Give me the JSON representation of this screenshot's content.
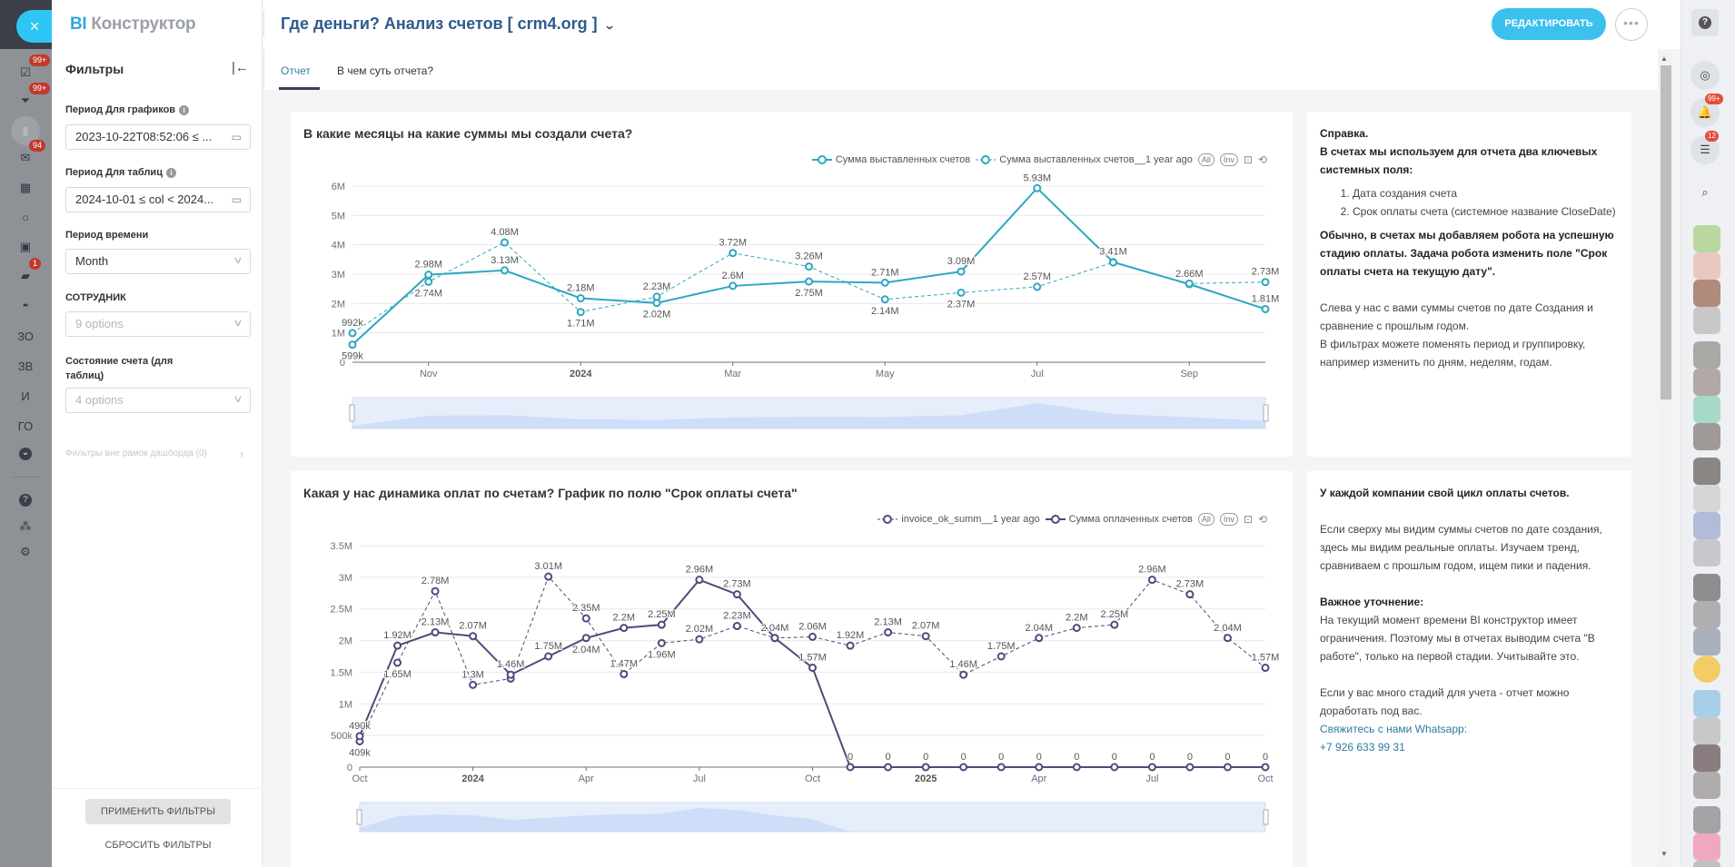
{
  "app": {
    "brand_prefix": "BI",
    "brand_name": "Конструктор",
    "title": "Где деньги? Анализ счетов [ crm4.org ]",
    "edit_label": "РЕДАКТИРОВАТЬ",
    "more_label": "•••",
    "close_icon": "×"
  },
  "left_rail": {
    "items": [
      {
        "icon": "tasks-icon",
        "glyph": "☑",
        "badge": "99+"
      },
      {
        "icon": "funnel-icon",
        "glyph": "⏷",
        "badge": "99+"
      },
      {
        "icon": "bi-chart-icon",
        "glyph": "▮",
        "badge": ""
      },
      {
        "icon": "mail-icon",
        "glyph": "✉",
        "badge": "94"
      },
      {
        "icon": "calendar-icon",
        "glyph": "▦",
        "badge": ""
      },
      {
        "icon": "circle-icon",
        "glyph": "○",
        "badge": ""
      },
      {
        "icon": "contact-card-icon",
        "glyph": "▣",
        "badge": ""
      },
      {
        "icon": "chat-icon",
        "glyph": "▰",
        "badge": "1"
      },
      {
        "icon": "robot-icon",
        "glyph": "◓",
        "badge": ""
      },
      {
        "icon": "text-item",
        "glyph": "ЗО",
        "badge": ""
      },
      {
        "icon": "text-item",
        "glyph": "ЗВ",
        "badge": ""
      },
      {
        "icon": "text-item",
        "glyph": "И",
        "badge": ""
      },
      {
        "icon": "text-item",
        "glyph": "ГО",
        "badge": ""
      },
      {
        "icon": "chevron-down-circle-icon",
        "glyph": "⌄",
        "badge": ""
      }
    ],
    "bottom": [
      {
        "icon": "help-icon",
        "glyph": "?"
      },
      {
        "icon": "sitemap-icon",
        "glyph": "⁂"
      },
      {
        "icon": "settings-icon",
        "glyph": "⚙"
      }
    ]
  },
  "filters": {
    "title": "Фильтры",
    "collapse_icon": "|←",
    "period_charts": {
      "label": "Период Для графиков",
      "value": "2023-10-22T08:52:06 ≤ ..."
    },
    "period_tables": {
      "label": "Период Для таблиц",
      "value": "2024-10-01 ≤ col < 2024..."
    },
    "time_grain": {
      "label": "Период времени",
      "value": "Month"
    },
    "employee": {
      "label": "СОТРУДНИК",
      "placeholder": "9 options"
    },
    "invoice_state": {
      "label": "Состояние счета (для таблиц)",
      "placeholder": "4 options"
    },
    "outside": "Фильтры вне рамок дашборда (0)",
    "apply": "ПРИМЕНИТЬ ФИЛЬТРЫ",
    "reset": "СБРОСИТЬ ФИЛЬТРЫ"
  },
  "tabs": [
    {
      "label": "Отчет",
      "active": true
    },
    {
      "label": "В чем суть отчета?",
      "active": false
    }
  ],
  "legend_controls": {
    "all": "All",
    "inv": "Inv"
  },
  "chart_data": [
    {
      "type": "line",
      "title": "В какие месяцы на какие суммы мы создали счета?",
      "color": "#2ea7c0",
      "x": [
        "2023-10",
        "2023-11",
        "2023-12",
        "2024-01",
        "2024-02",
        "2024-03",
        "2024-04",
        "2024-05",
        "2024-06",
        "2024-07",
        "2024-08",
        "2024-09",
        "2024-10"
      ],
      "x_ticks": [
        {
          "i": 1,
          "label": "Nov"
        },
        {
          "i": 3,
          "label": "2024",
          "bold": true
        },
        {
          "i": 5,
          "label": "Mar"
        },
        {
          "i": 7,
          "label": "May"
        },
        {
          "i": 9,
          "label": "Jul"
        },
        {
          "i": 11,
          "label": "Sep"
        }
      ],
      "y_ticks": [
        {
          "v": 0,
          "label": "0"
        },
        {
          "v": 1000000,
          "label": "1M"
        },
        {
          "v": 2000000,
          "label": "2M"
        },
        {
          "v": 3000000,
          "label": "3M"
        },
        {
          "v": 4000000,
          "label": "4M"
        },
        {
          "v": 5000000,
          "label": "5M"
        },
        {
          "v": 6000000,
          "label": "6M"
        }
      ],
      "ylim": [
        0,
        6000000
      ],
      "grid": true,
      "legend_position": "top-right",
      "series": [
        {
          "name": "Сумма выставленных счетов",
          "dashed": false,
          "values": [
            599000,
            2980000,
            3130000,
            2180000,
            2020000,
            2600000,
            2750000,
            2710000,
            3090000,
            5930000,
            3410000,
            2660000,
            1810000
          ],
          "labels": [
            "599k",
            "2.98M",
            "3.13M",
            "2.18M",
            "2.02M",
            "2.6M",
            "2.75M",
            "2.71M",
            "3.09M",
            "5.93M",
            "3.41M",
            "2.66M",
            "1.81M"
          ]
        },
        {
          "name": "Сумма выставленных счетов__1 year ago",
          "dashed": true,
          "values": [
            992000,
            2740000,
            4080000,
            1710000,
            2230000,
            3720000,
            3260000,
            2140000,
            2370000,
            2570000,
            3400000,
            2680000,
            2730000
          ],
          "labels": [
            "992k",
            "2.74M",
            "4.08M",
            "1.71M",
            "2.23M",
            "3.72M",
            "3.26M",
            "2.14M",
            "2.37M",
            "2.57M",
            "",
            "",
            "2.73M"
          ]
        }
      ]
    },
    {
      "type": "line",
      "title": "Какая у нас динамика оплат по счетам? График по полю \"Срок оплаты счета\"",
      "color": "#4a4c7a",
      "x": [
        "2023-10",
        "2023-11",
        "2023-12",
        "2024-01",
        "2024-02",
        "2024-03",
        "2024-04",
        "2024-05",
        "2024-06",
        "2024-07",
        "2024-08",
        "2024-09",
        "2024-10",
        "2024-11",
        "2024-12",
        "2025-01",
        "2025-02",
        "2025-03",
        "2025-04",
        "2025-05",
        "2025-06",
        "2025-07",
        "2025-08",
        "2025-09",
        "2025-10"
      ],
      "x_ticks": [
        {
          "i": 0,
          "label": "Oct"
        },
        {
          "i": 3,
          "label": "2024",
          "bold": true
        },
        {
          "i": 6,
          "label": "Apr"
        },
        {
          "i": 9,
          "label": "Jul"
        },
        {
          "i": 12,
          "label": "Oct"
        },
        {
          "i": 15,
          "label": "2025",
          "bold": true
        },
        {
          "i": 18,
          "label": "Apr"
        },
        {
          "i": 21,
          "label": "Jul"
        },
        {
          "i": 24,
          "label": "Oct"
        }
      ],
      "y_ticks": [
        {
          "v": 0,
          "label": "0"
        },
        {
          "v": 500000,
          "label": "500k"
        },
        {
          "v": 1000000,
          "label": "1M"
        },
        {
          "v": 1500000,
          "label": "1.5M"
        },
        {
          "v": 2000000,
          "label": "2M"
        },
        {
          "v": 2500000,
          "label": "2.5M"
        },
        {
          "v": 3000000,
          "label": "3M"
        },
        {
          "v": 3500000,
          "label": "3.5M"
        }
      ],
      "ylim": [
        0,
        3500000
      ],
      "grid": true,
      "legend_position": "top-right",
      "series": [
        {
          "name": "invoice_ok_summ__1 year ago",
          "dashed": true,
          "values": [
            409000,
            1650000,
            2780000,
            1300000,
            1400000,
            3010000,
            2350000,
            1470000,
            1960000,
            2020000,
            2230000,
            2040000,
            2060000,
            1920000,
            2130000,
            2070000,
            1460000,
            1750000,
            2040000,
            2200000,
            2250000,
            2960000,
            2730000,
            2040000,
            1570000
          ],
          "labels": [
            "409k",
            "1.65M",
            "2.78M",
            "1.3M",
            "",
            "3.01M",
            "2.35M",
            "1.47M",
            "1.96M",
            "2.02M",
            "2.23M",
            "",
            "2.06M",
            "1.92M",
            "2.13M",
            "2.07M",
            "1.46M",
            "1.75M",
            "2.04M",
            "2.2M",
            "2.25M",
            "2.96M",
            "2.73M",
            "2.04M",
            "1.57M"
          ]
        },
        {
          "name": "Сумма оплаченных счетов",
          "dashed": false,
          "values": [
            490000,
            1920000,
            2130000,
            2070000,
            1460000,
            1750000,
            2040000,
            2200000,
            2250000,
            2960000,
            2730000,
            2040000,
            1570000,
            0,
            0,
            0,
            0,
            0,
            0,
            0,
            0,
            0,
            0,
            0,
            0
          ],
          "labels": [
            "490k",
            "1.92M",
            "2.13M",
            "2.07M",
            "1.46M",
            "1.75M",
            "2.04M",
            "2.2M",
            "2.25M",
            "2.96M",
            "2.73M",
            "2.04M",
            "1.57M",
            "0",
            "0",
            "0",
            "0",
            "0",
            "0",
            "0",
            "0",
            "0",
            "0",
            "0",
            "0"
          ]
        }
      ]
    }
  ],
  "info_panels": [
    {
      "heading": "Справка.",
      "intro": "В счетах мы используем для отчета два ключевых системных поля:",
      "list": [
        "Дата создания счета",
        "Срок оплаты счета (системное название CloseDate)"
      ],
      "bold_note": "Обычно, в счетах мы добавляем робота на успешную стадию оплаты. Задача робота изменить поле \"Срок оплаты счета на текущую дату\".",
      "p1": "Слева у нас с вами суммы счетов по дате Создания и сравнение с прошлым годом.",
      "p2": "В фильтрах можете поменять период и группировку, например изменить по дням, неделям, годам."
    },
    {
      "heading": "У каждой компании свой цикл оплаты счетов.",
      "p1": "Если сверху мы видим суммы счетов по дате создания, здесь мы видим реальные оплаты. Изучаем тренд, сравниваем с прошлым годом, ищем пики и падения.",
      "subheading": "Важное уточнение:",
      "p2": "На текущий момент времени BI конструктор имеет ограничения. Поэтому мы в отчетах выводим счета \"В работе\", только на первой стадии. Учитывайте это.",
      "p3": "Если у вас много стадий для учета - отчет можно доработать под вас.",
      "link": "Свяжитесь с нами Whatsapp:",
      "phone": "+7 926 633 99 31"
    }
  ],
  "right_rail": {
    "help": "?",
    "items": [
      {
        "icon": "copilot-icon",
        "glyph": "◎",
        "badge": ""
      },
      {
        "icon": "bell-icon",
        "glyph": "🔔",
        "badge": "99+"
      },
      {
        "icon": "chat-list-icon",
        "glyph": "☰",
        "badge": "12"
      },
      {
        "icon": "search-icon",
        "glyph": "⌕",
        "badge": ""
      }
    ]
  }
}
